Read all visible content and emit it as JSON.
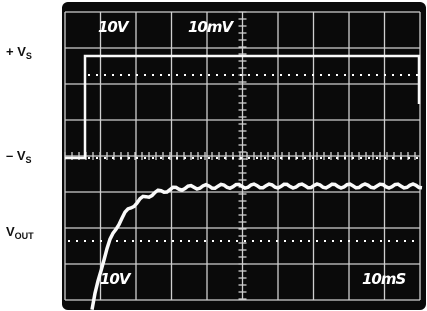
{
  "channel_labels": [
    {
      "name": "+ V",
      "sub": "S"
    },
    {
      "name": "– V",
      "sub": "S"
    },
    {
      "name": "V",
      "sub": "OUT"
    }
  ],
  "scale_labels": {
    "top_left": "10V",
    "top_mid": "10mV",
    "bottom_left": "10V",
    "bottom_right": "10mS"
  }
}
